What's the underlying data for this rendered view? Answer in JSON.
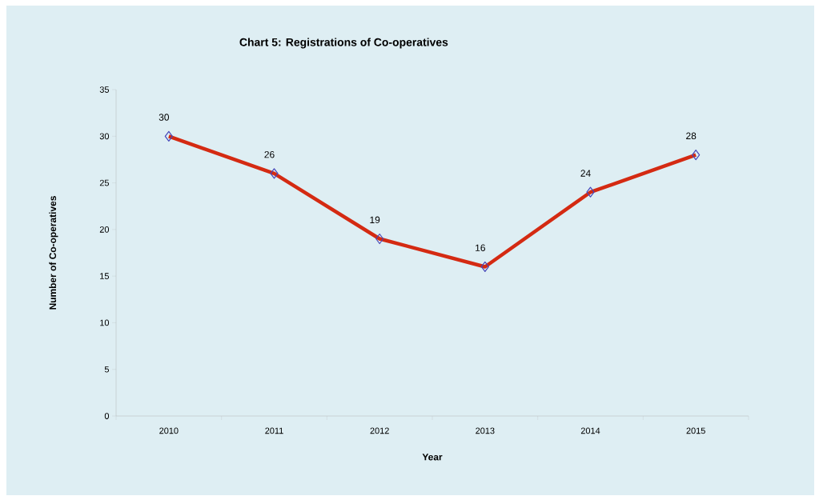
{
  "chart_data": {
    "type": "line",
    "title": "Chart 5: Registrations of Co-operatives",
    "xlabel": "Year",
    "ylabel": "Number of Co-operatives",
    "categories": [
      "2010",
      "2011",
      "2012",
      "2013",
      "2014",
      "2015"
    ],
    "values": [
      30,
      26,
      19,
      16,
      24,
      28
    ],
    "color": "#d42a12",
    "ylim": [
      0,
      35
    ],
    "yticks": [
      0,
      5,
      10,
      15,
      20,
      25,
      30,
      35
    ],
    "data_labels": true,
    "marker": "diamond"
  }
}
